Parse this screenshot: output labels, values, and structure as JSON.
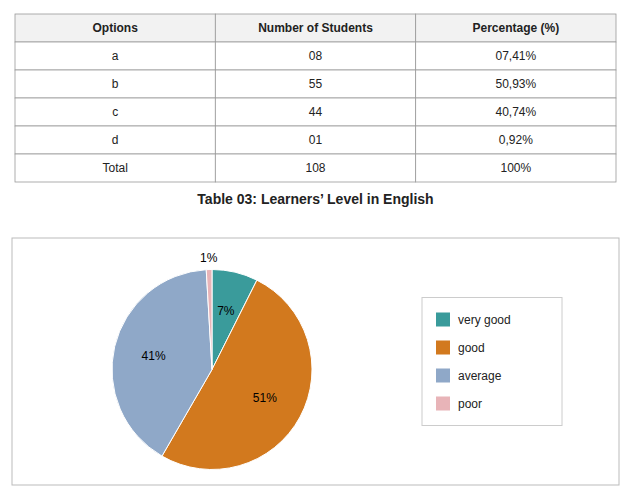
{
  "chart_data": [
    {
      "type": "table",
      "title": "Table 03: Learners’ Level in English",
      "columns": [
        "Options",
        "Number of Students",
        "Percentage (%)"
      ],
      "rows": [
        [
          "a",
          "08",
          "07,41%"
        ],
        [
          "b",
          "55",
          "50,93%"
        ],
        [
          "c",
          "44",
          "40,74%"
        ],
        [
          "d",
          "01",
          "0,92%"
        ],
        [
          "Total",
          "108",
          "100%"
        ]
      ]
    },
    {
      "type": "pie",
      "categories": [
        "very good",
        "good",
        "average",
        "poor"
      ],
      "values": [
        7.41,
        50.93,
        40.74,
        0.92
      ],
      "value_labels": [
        "7%",
        "51%",
        "41%",
        "1%"
      ],
      "colors": [
        "#3a9b9b",
        "#d2791e",
        "#8fa8c8",
        "#e8b4b8"
      ],
      "data_labels": true,
      "legend": "right"
    }
  ]
}
